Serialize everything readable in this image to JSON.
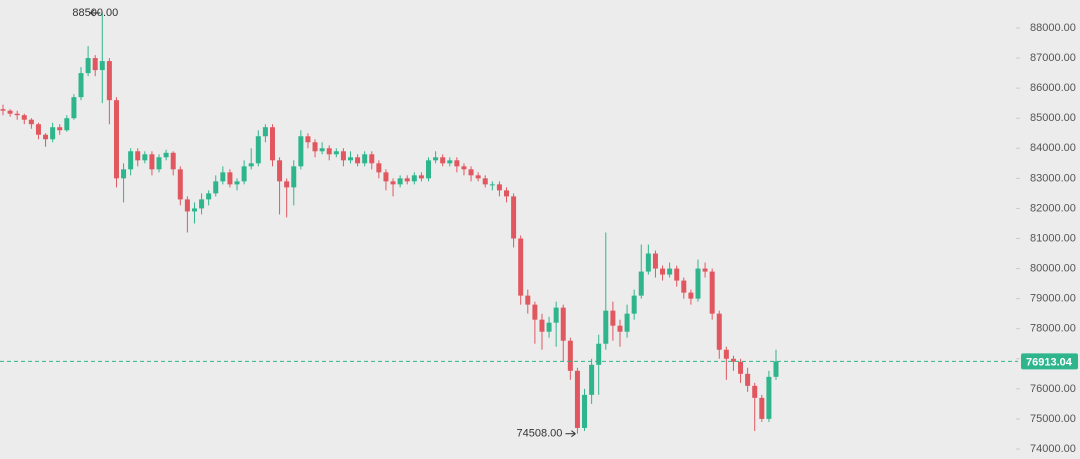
{
  "chart_data": {
    "type": "candlestick",
    "open": [
      85300,
      85250,
      85150,
      85100,
      84950,
      84800,
      84450,
      84300,
      84700,
      84600,
      85000,
      85700,
      86500,
      87000,
      86600,
      86900,
      85600,
      83000,
      83300,
      83900,
      83600,
      83800,
      83300,
      83700,
      83850,
      83300,
      82300,
      81900,
      82000,
      82300,
      82500,
      82900,
      83200,
      82800,
      82900,
      83400,
      83500,
      84400,
      84700,
      83600,
      82900,
      82700,
      83400,
      84400,
      84200,
      83900,
      84000,
      83800,
      83900,
      83600,
      83700,
      83500,
      83800,
      83500,
      83200,
      82900,
      82800,
      83000,
      82900,
      83100,
      83000,
      83600,
      83700,
      83500,
      83600,
      83400,
      83300,
      83100,
      83000,
      82800,
      82800,
      82600,
      82400,
      81000,
      79100,
      78800,
      78300,
      77900,
      78200,
      78700,
      77600,
      76600,
      74700,
      75800,
      76800,
      77500,
      78600,
      78100,
      77900,
      78500,
      79100,
      79900,
      80500,
      80000,
      79800,
      80000,
      79600,
      79200,
      79000,
      80000,
      79900,
      78500,
      77300,
      77000,
      76900,
      76500,
      76100,
      75700,
      75000,
      76400
    ],
    "high": [
      85450,
      85300,
      85250,
      85150,
      85000,
      84850,
      84500,
      84850,
      84800,
      85100,
      85800,
      86700,
      87400,
      87100,
      88500,
      87000,
      85700,
      83500,
      84000,
      84000,
      83900,
      83900,
      83800,
      83950,
      83900,
      83400,
      82400,
      82200,
      82500,
      82600,
      83100,
      83400,
      83300,
      83000,
      83600,
      84000,
      84600,
      84800,
      84800,
      83700,
      83000,
      83600,
      84600,
      84500,
      84300,
      84200,
      84100,
      84000,
      84000,
      83900,
      83800,
      83900,
      83900,
      83600,
      83300,
      83000,
      83100,
      83100,
      83200,
      83200,
      83700,
      83900,
      83800,
      83700,
      83700,
      83500,
      83400,
      83200,
      83100,
      82900,
      82900,
      82700,
      82500,
      81100,
      79300,
      78900,
      78500,
      78400,
      78900,
      78800,
      77700,
      76700,
      76000,
      77000,
      77800,
      81200,
      78900,
      78300,
      78800,
      79300,
      80800,
      80800,
      80600,
      80100,
      80200,
      80100,
      79700,
      79300,
      80300,
      80200,
      80000,
      78600,
      77400,
      77100,
      77000,
      76700,
      76200,
      75800,
      76600,
      77300
    ],
    "low": [
      85100,
      85050,
      84950,
      84800,
      84650,
      84300,
      84050,
      84200,
      84450,
      84550,
      84950,
      85600,
      86400,
      86400,
      85500,
      84800,
      82700,
      82200,
      83100,
      83400,
      83500,
      83100,
      83200,
      83600,
      83100,
      82100,
      81200,
      81500,
      81800,
      82100,
      82400,
      82800,
      82700,
      82600,
      82800,
      83300,
      83400,
      84200,
      83400,
      81800,
      81700,
      82100,
      83300,
      84000,
      83700,
      83800,
      83600,
      83700,
      83400,
      83500,
      83400,
      83400,
      83300,
      83000,
      82600,
      82400,
      82700,
      82800,
      82800,
      82900,
      82900,
      83500,
      83400,
      83400,
      83200,
      83100,
      82900,
      82900,
      82700,
      82600,
      82400,
      82200,
      80700,
      78800,
      78500,
      77500,
      77300,
      77700,
      77400,
      76900,
      76300,
      74508,
      74600,
      75500,
      75800,
      77300,
      77600,
      77400,
      77700,
      78300,
      79000,
      79800,
      79700,
      79600,
      79700,
      79400,
      79000,
      78800,
      78900,
      79700,
      78300,
      77000,
      76300,
      76600,
      76200,
      75900,
      74600,
      74900,
      74900,
      76300
    ],
    "close": [
      85250,
      85150,
      85100,
      84950,
      84800,
      84450,
      84300,
      84700,
      84600,
      85000,
      85700,
      86500,
      87000,
      86600,
      86900,
      85600,
      83000,
      83300,
      83900,
      83600,
      83800,
      83300,
      83700,
      83850,
      83300,
      82300,
      81900,
      82000,
      82300,
      82500,
      82900,
      83200,
      82800,
      82900,
      83400,
      83500,
      84400,
      84700,
      83600,
      82900,
      82700,
      83400,
      84400,
      84200,
      83900,
      84000,
      83800,
      83900,
      83600,
      83700,
      83500,
      83800,
      83500,
      83200,
      82900,
      82800,
      83000,
      82900,
      83100,
      83000,
      83600,
      83700,
      83500,
      83600,
      83400,
      83300,
      83100,
      83000,
      82800,
      82800,
      82600,
      82400,
      81000,
      79100,
      78800,
      78300,
      77900,
      78200,
      78700,
      77600,
      76600,
      74700,
      75800,
      76800,
      77500,
      78600,
      78100,
      77900,
      78500,
      79100,
      79900,
      80500,
      80000,
      79800,
      80000,
      79600,
      79200,
      79000,
      80000,
      79900,
      78500,
      77300,
      77000,
      76900,
      76500,
      76100,
      75700,
      75000,
      76400,
      76913.04
    ],
    "up_color": "#2fb58c",
    "down_color": "#e1575f",
    "ylim": [
      73667,
      88931
    ],
    "yticks": [
      {
        "value": 74000,
        "label": "74000.00"
      },
      {
        "value": 75000,
        "label": "75000.00"
      },
      {
        "value": 76000,
        "label": "76000.00"
      },
      {
        "value": 77000,
        "label": "77000.00"
      },
      {
        "value": 78000,
        "label": "78000.00"
      },
      {
        "value": 79000,
        "label": "79000.00"
      },
      {
        "value": 80000,
        "label": "80000.00"
      },
      {
        "value": 81000,
        "label": "81000.00"
      },
      {
        "value": 82000,
        "label": "82000.00"
      },
      {
        "value": 83000,
        "label": "83000.00"
      },
      {
        "value": 84000,
        "label": "84000.00"
      },
      {
        "value": 85000,
        "label": "85000.00"
      },
      {
        "value": 86000,
        "label": "86000.00"
      },
      {
        "value": 87000,
        "label": "87000.00"
      },
      {
        "value": 88000,
        "label": "88000.00"
      }
    ],
    "high_marker": {
      "value": 88500,
      "label": "88500.00"
    },
    "low_marker": {
      "value": 74508,
      "label": "74508.00"
    },
    "last_price": 76913.04,
    "last_price_color": "#2fb58c"
  }
}
